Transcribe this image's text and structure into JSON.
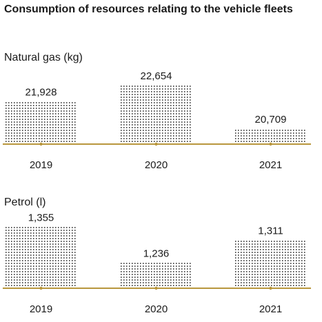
{
  "title": "Consumption of resources relating to the vehicle fleets",
  "colors": {
    "dots": "#1a1a1a",
    "baseline": "#b8963c",
    "text": "#1a1a1a"
  },
  "chart_data": [
    {
      "type": "bar",
      "title": "Natural gas (kg)",
      "categories": [
        "2019",
        "2020",
        "2021"
      ],
      "values": [
        21928,
        22654,
        20709
      ],
      "value_labels": [
        "21,928",
        "22,654",
        "20,709"
      ],
      "ylim": [
        20000,
        23000
      ],
      "bar_style": "dotted",
      "grid": false
    },
    {
      "type": "bar",
      "title": "Petrol (l)",
      "categories": [
        "2019",
        "2020",
        "2021"
      ],
      "values": [
        1355,
        1236,
        1311
      ],
      "value_labels": [
        "1,355",
        "1,236",
        "1,311"
      ],
      "ylim": [
        1150,
        1370
      ],
      "bar_style": "dotted",
      "grid": false
    }
  ]
}
